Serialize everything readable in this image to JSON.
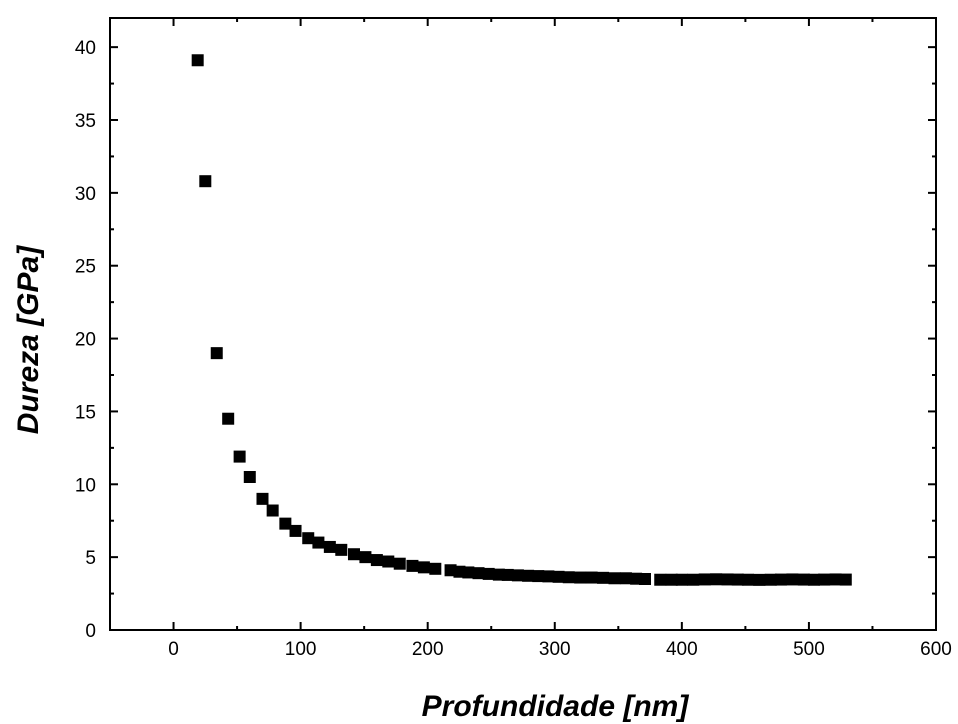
{
  "chart_data": {
    "type": "scatter",
    "title": "",
    "xlabel": "Profundidade [nm]",
    "ylabel": "Dureza [GPa]",
    "xlim": [
      -50,
      600
    ],
    "ylim": [
      0,
      42
    ],
    "xticks": [
      0,
      100,
      200,
      300,
      400,
      500,
      600
    ],
    "yticks": [
      0,
      5,
      10,
      15,
      20,
      25,
      30,
      35,
      40
    ],
    "grid": false,
    "legend": "none",
    "marker": "square",
    "marker_color": "#000000",
    "series": [
      {
        "x": [
          19,
          25,
          34,
          43,
          52,
          60,
          70,
          78,
          88,
          96,
          106,
          114,
          123,
          132,
          142,
          151,
          160,
          169,
          178,
          188,
          197,
          206,
          218,
          225,
          232,
          240,
          248,
          256,
          263,
          271,
          279,
          287,
          295,
          303,
          311,
          320,
          329,
          338,
          347,
          356,
          364,
          371,
          383,
          392,
          400,
          409,
          418,
          427,
          436,
          444,
          452,
          461,
          470,
          478,
          487,
          496,
          504,
          512,
          521,
          529
        ],
        "y": [
          39.1,
          30.8,
          19.0,
          14.5,
          11.9,
          10.5,
          9.0,
          8.2,
          7.3,
          6.8,
          6.3,
          6.0,
          5.7,
          5.5,
          5.2,
          5.0,
          4.8,
          4.7,
          4.55,
          4.4,
          4.3,
          4.2,
          4.1,
          4.0,
          3.95,
          3.9,
          3.85,
          3.8,
          3.78,
          3.75,
          3.72,
          3.7,
          3.68,
          3.65,
          3.62,
          3.6,
          3.6,
          3.58,
          3.55,
          3.55,
          3.52,
          3.5,
          3.45,
          3.45,
          3.45,
          3.45,
          3.47,
          3.48,
          3.47,
          3.46,
          3.45,
          3.44,
          3.45,
          3.46,
          3.47,
          3.46,
          3.45,
          3.46,
          3.47,
          3.46
        ]
      }
    ]
  }
}
